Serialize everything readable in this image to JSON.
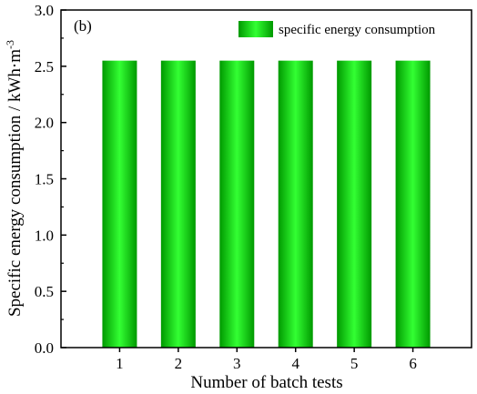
{
  "chart_data": {
    "type": "bar",
    "panel_label": "(b)",
    "categories": [
      "1",
      "2",
      "3",
      "4",
      "5",
      "6"
    ],
    "series": [
      {
        "name": "specific energy consumption",
        "values": [
          2.55,
          2.55,
          2.55,
          2.55,
          2.55,
          2.55
        ]
      }
    ],
    "xlabel": "Number of batch tests",
    "ylabel_main": "Specific energy consumption / kWh·m",
    "ylabel_superscript": "-3",
    "ylim": [
      0,
      3.0
    ],
    "yticks": [
      "0.0",
      "0.5",
      "1.0",
      "1.5",
      "2.0",
      "2.5",
      "3.0"
    ],
    "legend_position": "top-right",
    "grid": false,
    "colors": {
      "bar_center": "#33ff33",
      "bar_edge": "#009900"
    }
  }
}
